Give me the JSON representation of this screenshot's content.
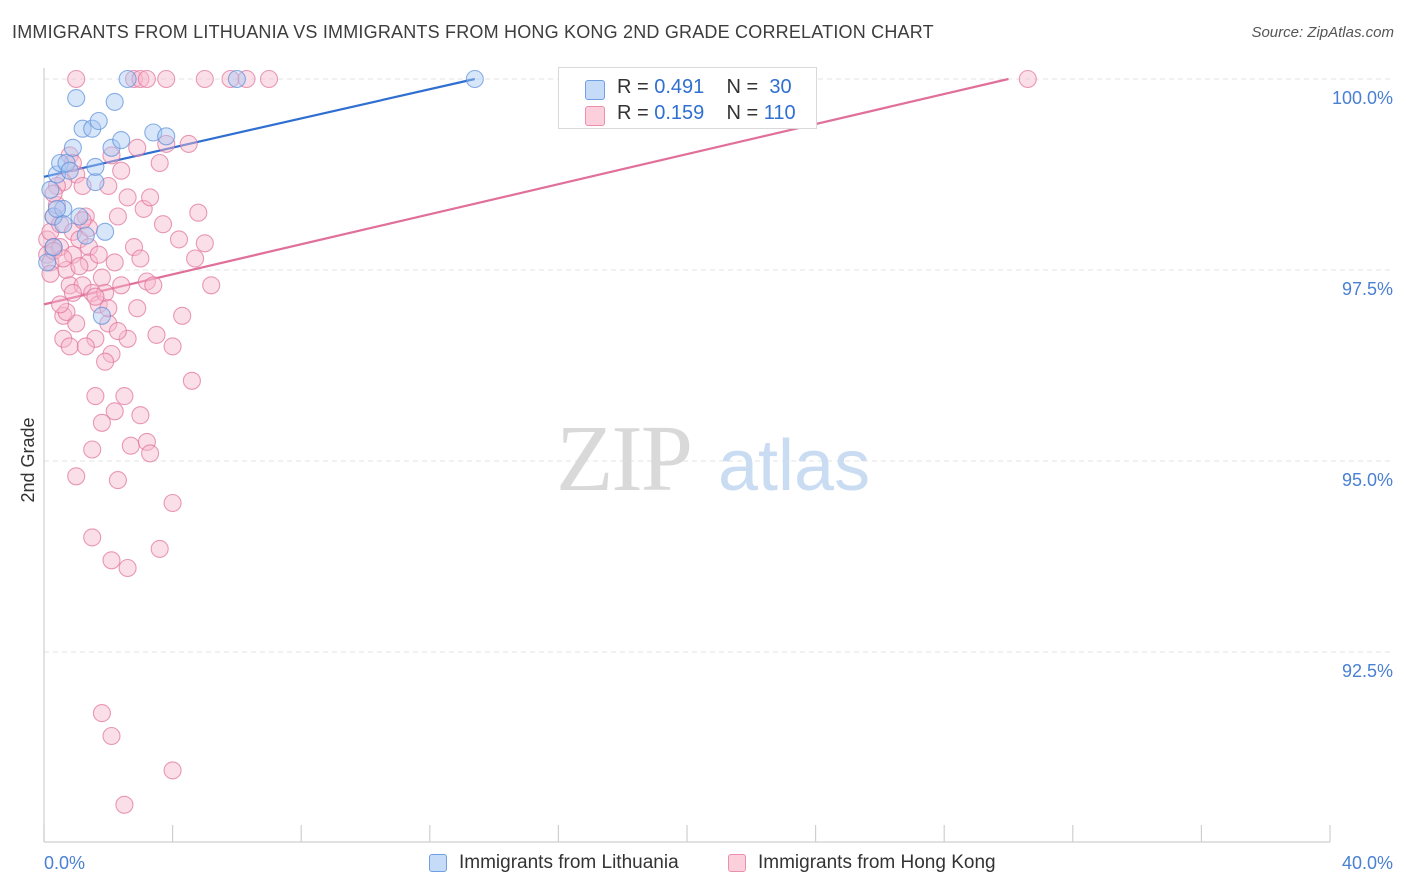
{
  "header": {
    "title": "IMMIGRANTS FROM LITHUANIA VS IMMIGRANTS FROM HONG KONG 2ND GRADE CORRELATION CHART",
    "source": "Source: ZipAtlas.com"
  },
  "watermark": {
    "zip": "ZIP",
    "atlas": "atlas"
  },
  "correlation_box": {
    "rows": [
      {
        "r_label": "R =",
        "r_value": "0.491",
        "n_label": "N =",
        "n_value": "30",
        "color": "#a9c8f5"
      },
      {
        "r_label": "R =",
        "r_value": "0.159",
        "n_label": "N =",
        "n_value": "110",
        "color": "#f7b8cb"
      }
    ]
  },
  "legend": {
    "items": [
      {
        "label": "Immigrants from Lithuania",
        "color": "#a9c8f5"
      },
      {
        "label": "Immigrants from Hong Kong",
        "color": "#f7b8cb"
      }
    ]
  },
  "chart_data": {
    "type": "scatter",
    "title": "IMMIGRANTS FROM LITHUANIA VS IMMIGRANTS FROM HONG KONG 2ND GRADE CORRELATION CHART",
    "xlabel": "",
    "ylabel": "2nd Grade",
    "xlim": [
      0,
      40
    ],
    "ylim": [
      90.3,
      100.2
    ],
    "x_tick_labels": [
      "0.0%",
      "40.0%"
    ],
    "y_ticks": [
      92.5,
      95.0,
      97.5,
      100.0
    ],
    "y_tick_labels": [
      "92.5%",
      "95.0%",
      "97.5%",
      "100.0%"
    ],
    "grid": true,
    "legend_position": "bottom",
    "series": [
      {
        "name": "Immigrants from Lithuania",
        "color": "#5b8fd9",
        "fill": "#a9c8f5",
        "trend": {
          "x": [
            0.0,
            13.4
          ],
          "y": [
            98.72,
            100.0
          ]
        },
        "points": [
          [
            0.2,
            98.55
          ],
          [
            0.3,
            98.2
          ],
          [
            0.4,
            98.75
          ],
          [
            0.5,
            98.9
          ],
          [
            0.6,
            98.3
          ],
          [
            0.7,
            98.9
          ],
          [
            0.8,
            98.8
          ],
          [
            0.9,
            99.1
          ],
          [
            1.0,
            99.75
          ],
          [
            1.1,
            98.2
          ],
          [
            1.2,
            99.35
          ],
          [
            1.3,
            97.95
          ],
          [
            1.5,
            99.35
          ],
          [
            1.6,
            98.65
          ],
          [
            1.6,
            98.85
          ],
          [
            1.7,
            99.45
          ],
          [
            1.9,
            98.0
          ],
          [
            2.1,
            99.1
          ],
          [
            2.2,
            99.7
          ],
          [
            2.4,
            99.2
          ],
          [
            2.6,
            100.0
          ],
          [
            3.4,
            99.3
          ],
          [
            3.8,
            99.25
          ],
          [
            6.0,
            100.0
          ],
          [
            13.4,
            100.0
          ],
          [
            1.8,
            96.9
          ],
          [
            0.1,
            97.6
          ],
          [
            0.3,
            97.8
          ],
          [
            0.6,
            98.1
          ],
          [
            0.4,
            98.3
          ]
        ]
      },
      {
        "name": "Immigrants from Hong Kong",
        "color": "#e0709a",
        "fill": "#f7b8cb",
        "trend": {
          "x": [
            0.0,
            30.0
          ],
          "y": [
            97.05,
            100.0
          ]
        },
        "points": [
          [
            0.1,
            97.9
          ],
          [
            0.1,
            97.7
          ],
          [
            0.2,
            98.0
          ],
          [
            0.2,
            97.6
          ],
          [
            0.3,
            98.2
          ],
          [
            0.3,
            97.8
          ],
          [
            0.4,
            98.35
          ],
          [
            0.5,
            97.8
          ],
          [
            0.5,
            98.1
          ],
          [
            0.6,
            96.9
          ],
          [
            0.6,
            96.6
          ],
          [
            0.7,
            97.5
          ],
          [
            0.8,
            96.5
          ],
          [
            0.8,
            97.3
          ],
          [
            0.9,
            98.0
          ],
          [
            0.9,
            97.7
          ],
          [
            1.0,
            96.8
          ],
          [
            1.0,
            98.75
          ],
          [
            1.1,
            97.9
          ],
          [
            1.2,
            97.3
          ],
          [
            1.3,
            98.2
          ],
          [
            1.4,
            97.8
          ],
          [
            1.4,
            97.6
          ],
          [
            1.5,
            97.2
          ],
          [
            1.6,
            96.6
          ],
          [
            1.7,
            97.05
          ],
          [
            1.8,
            97.4
          ],
          [
            1.9,
            97.2
          ],
          [
            2.0,
            96.8
          ],
          [
            2.1,
            96.4
          ],
          [
            2.1,
            99.0
          ],
          [
            2.3,
            98.2
          ],
          [
            2.4,
            97.3
          ],
          [
            2.4,
            98.8
          ],
          [
            2.6,
            96.6
          ],
          [
            2.6,
            98.45
          ],
          [
            2.8,
            97.8
          ],
          [
            2.9,
            99.1
          ],
          [
            3.0,
            97.65
          ],
          [
            3.1,
            98.3
          ],
          [
            3.2,
            97.35
          ],
          [
            3.3,
            98.45
          ],
          [
            3.5,
            96.65
          ],
          [
            3.6,
            98.9
          ],
          [
            3.8,
            99.15
          ],
          [
            4.0,
            96.5
          ],
          [
            4.3,
            96.9
          ],
          [
            4.5,
            99.15
          ],
          [
            4.7,
            97.65
          ],
          [
            4.8,
            98.25
          ],
          [
            5.0,
            97.85
          ],
          [
            5.2,
            97.3
          ],
          [
            1.3,
            96.5
          ],
          [
            1.6,
            95.85
          ],
          [
            1.9,
            96.3
          ],
          [
            2.2,
            95.65
          ],
          [
            2.5,
            95.85
          ],
          [
            2.7,
            95.2
          ],
          [
            3.0,
            95.6
          ],
          [
            3.2,
            95.25
          ],
          [
            3.3,
            95.1
          ],
          [
            1.8,
            95.5
          ],
          [
            1.5,
            95.15
          ],
          [
            1.0,
            94.8
          ],
          [
            2.3,
            94.75
          ],
          [
            1.5,
            94.0
          ],
          [
            2.1,
            93.7
          ],
          [
            2.6,
            93.6
          ],
          [
            3.6,
            93.85
          ],
          [
            4.0,
            94.45
          ],
          [
            4.6,
            96.05
          ],
          [
            1.8,
            91.7
          ],
          [
            2.1,
            91.4
          ],
          [
            2.5,
            90.5
          ],
          [
            4.0,
            90.95
          ],
          [
            2.8,
            100.0
          ],
          [
            3.0,
            100.0
          ],
          [
            3.2,
            100.0
          ],
          [
            3.8,
            100.0
          ],
          [
            5.0,
            100.0
          ],
          [
            5.8,
            100.0
          ],
          [
            6.3,
            100.0
          ],
          [
            7.0,
            100.0
          ],
          [
            30.6,
            100.0
          ],
          [
            1.0,
            100.0
          ],
          [
            0.8,
            99.0
          ],
          [
            0.6,
            98.65
          ],
          [
            0.4,
            98.6
          ],
          [
            0.2,
            97.45
          ],
          [
            0.3,
            97.75
          ],
          [
            1.6,
            97.15
          ],
          [
            2.0,
            97.0
          ],
          [
            2.3,
            96.7
          ],
          [
            1.2,
            98.6
          ],
          [
            1.4,
            98.05
          ],
          [
            1.1,
            97.55
          ],
          [
            0.9,
            97.2
          ],
          [
            0.7,
            96.95
          ],
          [
            0.5,
            97.05
          ],
          [
            0.6,
            97.65
          ],
          [
            1.7,
            97.7
          ],
          [
            2.2,
            97.6
          ],
          [
            2.9,
            97.0
          ],
          [
            3.4,
            97.3
          ],
          [
            3.7,
            98.1
          ],
          [
            4.2,
            97.9
          ],
          [
            2.0,
            98.6
          ],
          [
            0.3,
            98.5
          ],
          [
            0.9,
            98.9
          ],
          [
            1.2,
            98.15
          ]
        ]
      }
    ]
  }
}
